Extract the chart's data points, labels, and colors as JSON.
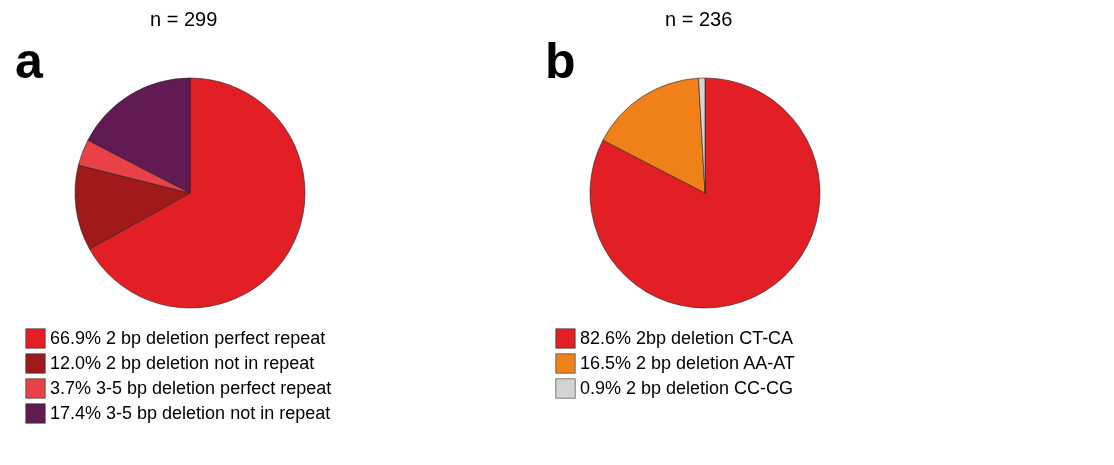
{
  "chart_data": [
    {
      "type": "pie",
      "title": "n = 299",
      "annotations": [
        "a"
      ],
      "legend": "bottom",
      "categories": [
        "2 bp deletion perfect repeat",
        "2 bp deletion not in repeat",
        "3-5 bp deletion perfect repeat",
        "3-5 bp deletion not in repeat"
      ],
      "values": [
        66.9,
        12.0,
        3.7,
        17.4
      ],
      "value_labels": [
        "66.9%",
        "12.0%",
        "3.7%",
        "17.4%"
      ],
      "colors": [
        "#e31f26",
        "#a01a1b",
        "#e84248",
        "#611a52"
      ]
    },
    {
      "type": "pie",
      "title": "n = 236",
      "annotations": [
        "b"
      ],
      "legend": "bottom",
      "categories": [
        "2bp deletion CT-CA",
        "2 bp deletion AA-AT",
        "2 bp deletion CC-CG"
      ],
      "values": [
        82.6,
        16.5,
        0.9
      ],
      "value_labels": [
        "82.6%",
        "16.5%",
        "0.9%"
      ],
      "colors": [
        "#e31f26",
        "#f08119",
        "#d4d4d4"
      ]
    }
  ]
}
